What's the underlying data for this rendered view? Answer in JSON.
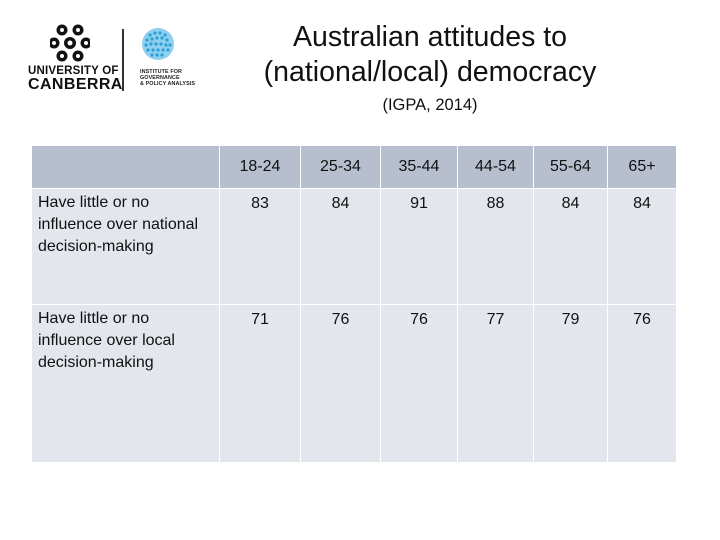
{
  "title_lines": [
    "Australian attitudes to",
    "(national/local) democracy"
  ],
  "subtitle": "(IGPA, 2014)",
  "logos": {
    "university": {
      "line1": "UNIVERSITY OF",
      "line2": "CANBERRA"
    },
    "institute": {
      "lines": [
        "INSTITUTE FOR",
        "GOVERNANCE",
        "& POLICY ANALYSIS"
      ]
    }
  },
  "table": {
    "columns": [
      "18-24",
      "25-34",
      "35-44",
      "44-54",
      "55-64",
      "65+"
    ],
    "rows": [
      {
        "label": "Have little or no influence over national decision-making",
        "values": [
          "83",
          "84",
          "91",
          "88",
          "84",
          "84"
        ]
      },
      {
        "label": "Have little or no influence over local decision-making",
        "values": [
          "71",
          "76",
          "76",
          "77",
          "79",
          "76"
        ]
      }
    ]
  },
  "colors": {
    "header_bg": "#b7bfcf",
    "row_bg": "#e3e6ed",
    "igpa_blue": "#2aa0d8"
  }
}
